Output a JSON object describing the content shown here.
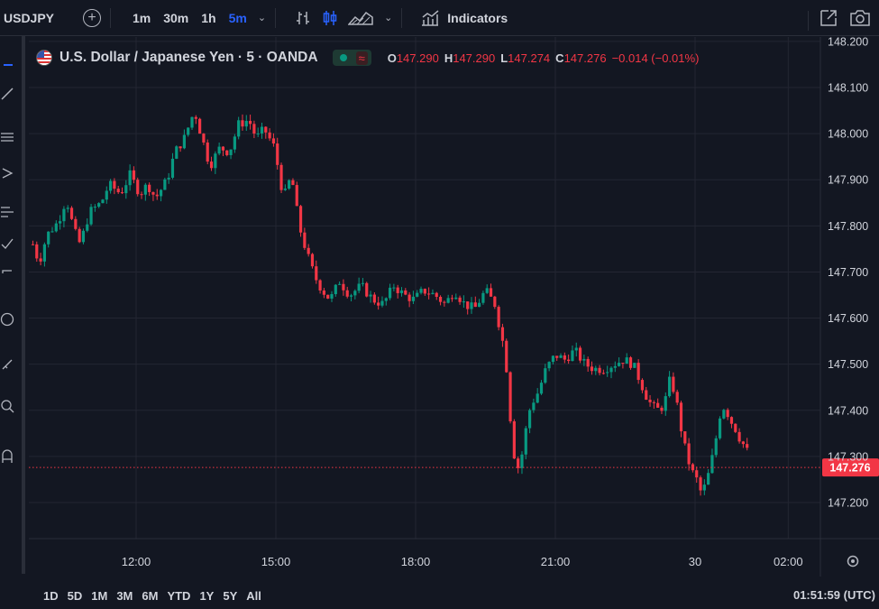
{
  "toolbar": {
    "symbol": "USDJPY",
    "add_icon": "plus-circle-icon",
    "timeframes": [
      "1m",
      "30m",
      "1h",
      "5m"
    ],
    "active_timeframe": "5m",
    "chart_type_icons": [
      "bar-chart-icon",
      "candles-icon",
      "area-chart-icon"
    ],
    "indicators_label": "Indicators",
    "right_icons": [
      "fullscreen-icon",
      "camera-icon"
    ]
  },
  "legend": {
    "title": "U.S. Dollar / Japanese Yen · 5 · OANDA",
    "status_dot_color": "#089981",
    "open_label": "O",
    "open": "147.290",
    "high_label": "H",
    "high": "147.290",
    "low_label": "L",
    "low": "147.274",
    "close_label": "C",
    "close": "147.276",
    "change": "−0.014 (−0.01%)"
  },
  "bottom": {
    "ranges": [
      "1D",
      "5D",
      "1M",
      "3M",
      "6M",
      "YTD",
      "1Y",
      "5Y",
      "All"
    ],
    "clock": "01:51:59 (UTC)"
  },
  "colors": {
    "up": "#089981",
    "down": "#f23645",
    "background": "#131722",
    "grid": "#232632",
    "active": "#2962ff"
  },
  "chart_data": {
    "type": "candlestick",
    "title": "U.S. Dollar / Japanese Yen · 5 · OANDA",
    "y_ticks": [
      "148.200",
      "148.100",
      "148.000",
      "147.900",
      "147.800",
      "147.700",
      "147.600",
      "147.500",
      "147.400",
      "147.300",
      "147.200"
    ],
    "y_range": [
      147.15,
      148.2
    ],
    "x_labels": [
      {
        "label": "12:00",
        "t": 0
      },
      {
        "label": "15:00",
        "t": 180
      },
      {
        "label": "18:00",
        "t": 360
      },
      {
        "label": "21:00",
        "t": 540
      },
      {
        "label": "30",
        "t": 720
      },
      {
        "label": "02:00",
        "t": 840
      }
    ],
    "x_range": [
      -135,
      900
    ],
    "last_price": "147.276",
    "last_price_value": 147.276,
    "close_path": [
      {
        "t": -133,
        "v": 147.76
      },
      {
        "t": -125,
        "v": 147.72
      },
      {
        "t": -115,
        "v": 147.78
      },
      {
        "t": -100,
        "v": 147.81
      },
      {
        "t": -90,
        "v": 147.86
      },
      {
        "t": -80,
        "v": 147.79
      },
      {
        "t": -72,
        "v": 147.76
      },
      {
        "t": -60,
        "v": 147.83
      },
      {
        "t": -45,
        "v": 147.85
      },
      {
        "t": -35,
        "v": 147.89
      },
      {
        "t": -20,
        "v": 147.87
      },
      {
        "t": -8,
        "v": 147.91
      },
      {
        "t": 5,
        "v": 147.87
      },
      {
        "t": 15,
        "v": 147.89
      },
      {
        "t": 25,
        "v": 147.86
      },
      {
        "t": 40,
        "v": 147.9
      },
      {
        "t": 50,
        "v": 147.96
      },
      {
        "t": 62,
        "v": 147.99
      },
      {
        "t": 75,
        "v": 148.05
      },
      {
        "t": 85,
        "v": 147.99
      },
      {
        "t": 95,
        "v": 147.93
      },
      {
        "t": 108,
        "v": 147.97
      },
      {
        "t": 120,
        "v": 147.96
      },
      {
        "t": 132,
        "v": 148.02
      },
      {
        "t": 145,
        "v": 148.03
      },
      {
        "t": 155,
        "v": 147.99
      },
      {
        "t": 165,
        "v": 148.01
      },
      {
        "t": 178,
        "v": 147.97
      },
      {
        "t": 190,
        "v": 147.86
      },
      {
        "t": 200,
        "v": 147.91
      },
      {
        "t": 210,
        "v": 147.8
      },
      {
        "t": 220,
        "v": 147.74
      },
      {
        "t": 230,
        "v": 147.69
      },
      {
        "t": 240,
        "v": 147.66
      },
      {
        "t": 250,
        "v": 147.64
      },
      {
        "t": 262,
        "v": 147.68
      },
      {
        "t": 275,
        "v": 147.65
      },
      {
        "t": 290,
        "v": 147.67
      },
      {
        "t": 305,
        "v": 147.64
      },
      {
        "t": 318,
        "v": 147.63
      },
      {
        "t": 332,
        "v": 147.67
      },
      {
        "t": 345,
        "v": 147.65
      },
      {
        "t": 358,
        "v": 147.64
      },
      {
        "t": 370,
        "v": 147.66
      },
      {
        "t": 385,
        "v": 147.65
      },
      {
        "t": 398,
        "v": 147.63
      },
      {
        "t": 410,
        "v": 147.66
      },
      {
        "t": 423,
        "v": 147.63
      },
      {
        "t": 436,
        "v": 147.62
      },
      {
        "t": 450,
        "v": 147.66
      },
      {
        "t": 462,
        "v": 147.63
      },
      {
        "t": 472,
        "v": 147.55
      },
      {
        "t": 478,
        "v": 147.48
      },
      {
        "t": 483,
        "v": 147.36
      },
      {
        "t": 488,
        "v": 147.29
      },
      {
        "t": 494,
        "v": 147.27
      },
      {
        "t": 500,
        "v": 147.34
      },
      {
        "t": 508,
        "v": 147.41
      },
      {
        "t": 518,
        "v": 147.44
      },
      {
        "t": 528,
        "v": 147.49
      },
      {
        "t": 540,
        "v": 147.52
      },
      {
        "t": 552,
        "v": 147.51
      },
      {
        "t": 565,
        "v": 147.53
      },
      {
        "t": 578,
        "v": 147.5
      },
      {
        "t": 590,
        "v": 147.49
      },
      {
        "t": 602,
        "v": 147.49
      },
      {
        "t": 615,
        "v": 147.5
      },
      {
        "t": 628,
        "v": 147.51
      },
      {
        "t": 640,
        "v": 147.5
      },
      {
        "t": 650,
        "v": 147.46
      },
      {
        "t": 660,
        "v": 147.42
      },
      {
        "t": 670,
        "v": 147.4
      },
      {
        "t": 680,
        "v": 147.41
      },
      {
        "t": 688,
        "v": 147.47
      },
      {
        "t": 695,
        "v": 147.43
      },
      {
        "t": 702,
        "v": 147.36
      },
      {
        "t": 708,
        "v": 147.31
      },
      {
        "t": 715,
        "v": 147.27
      },
      {
        "t": 722,
        "v": 147.25
      },
      {
        "t": 728,
        "v": 147.22
      },
      {
        "t": 734,
        "v": 147.24
      },
      {
        "t": 740,
        "v": 147.28
      },
      {
        "t": 746,
        "v": 147.33
      },
      {
        "t": 752,
        "v": 147.39
      },
      {
        "t": 758,
        "v": 147.41
      },
      {
        "t": 765,
        "v": 147.38
      },
      {
        "t": 772,
        "v": 147.36
      },
      {
        "t": 780,
        "v": 147.33
      },
      {
        "t": 786,
        "v": 147.32
      },
      {
        "t": 791,
        "v": 147.276
      }
    ]
  }
}
